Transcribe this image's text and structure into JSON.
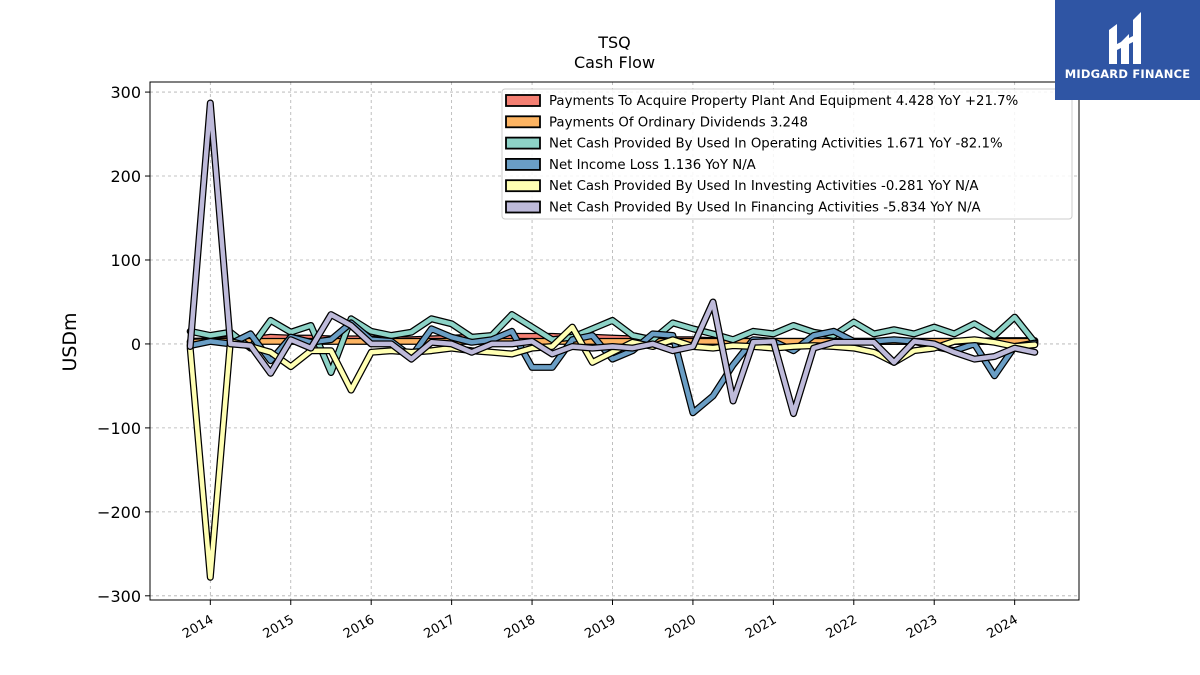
{
  "chart_data": {
    "type": "line",
    "title": "TSQ",
    "subtitle": "Cash Flow",
    "ylabel": "USDm",
    "ylim": [
      -305,
      312
    ],
    "xlim": [
      2013.25,
      2024.8
    ],
    "yticks": [
      300,
      200,
      100,
      0,
      -100,
      -200,
      -300
    ],
    "ytick_labels": [
      "300",
      "200",
      "100",
      "0",
      "−100",
      "−200",
      "−300"
    ],
    "xticks": [
      2014,
      2015,
      2016,
      2017,
      2018,
      2019,
      2020,
      2021,
      2022,
      2023,
      2024
    ],
    "xtick_labels": [
      "2014",
      "2015",
      "2016",
      "2017",
      "2018",
      "2019",
      "2020",
      "2021",
      "2022",
      "2023",
      "2024"
    ],
    "grid": true,
    "legend_position": "top-right",
    "series": [
      {
        "name": "Payments To Acquire Property Plant And Equipment  4.428 YoY +21.7%",
        "color": "#f47f72",
        "points": [
          [
            2013.75,
            3
          ],
          [
            2014.0,
            4
          ],
          [
            2014.25,
            5
          ],
          [
            2014.5,
            5
          ],
          [
            2014.75,
            8
          ],
          [
            2015.0,
            7
          ],
          [
            2015.25,
            7
          ],
          [
            2015.5,
            6
          ],
          [
            2015.75,
            6
          ],
          [
            2016.0,
            6
          ],
          [
            2016.25,
            5
          ],
          [
            2016.5,
            5
          ],
          [
            2016.75,
            6
          ],
          [
            2017.0,
            7
          ],
          [
            2017.25,
            8
          ],
          [
            2017.5,
            9
          ],
          [
            2017.75,
            9
          ],
          [
            2018.0,
            9
          ],
          [
            2018.25,
            9
          ],
          [
            2018.5,
            8
          ],
          [
            2018.75,
            8
          ],
          [
            2019.0,
            7
          ],
          [
            2019.25,
            6
          ],
          [
            2019.5,
            5
          ],
          [
            2019.75,
            5
          ],
          [
            2020.0,
            5
          ],
          [
            2020.25,
            4
          ],
          [
            2020.5,
            4
          ],
          [
            2020.75,
            3
          ],
          [
            2021.0,
            3
          ],
          [
            2021.25,
            3
          ],
          [
            2021.5,
            3
          ],
          [
            2021.75,
            3
          ],
          [
            2022.0,
            3
          ],
          [
            2022.25,
            3
          ],
          [
            2022.5,
            3
          ],
          [
            2022.75,
            3
          ],
          [
            2023.0,
            3
          ],
          [
            2023.25,
            3
          ],
          [
            2023.5,
            3
          ],
          [
            2023.75,
            4
          ],
          [
            2024.0,
            4
          ],
          [
            2024.25,
            4
          ]
        ]
      },
      {
        "name": "Payments Of Ordinary Dividends  3.248",
        "color": "#fdb462",
        "points": [
          [
            2013.75,
            2
          ],
          [
            2014.0,
            3
          ],
          [
            2014.25,
            3
          ],
          [
            2014.5,
            3
          ],
          [
            2014.75,
            3
          ],
          [
            2015.0,
            3
          ],
          [
            2015.25,
            3
          ],
          [
            2015.5,
            3
          ],
          [
            2015.75,
            3
          ],
          [
            2016.0,
            3
          ],
          [
            2016.25,
            3
          ],
          [
            2016.5,
            3
          ],
          [
            2016.75,
            3
          ],
          [
            2017.0,
            3
          ],
          [
            2017.25,
            3
          ],
          [
            2017.5,
            3
          ],
          [
            2017.75,
            3
          ],
          [
            2018.0,
            3
          ],
          [
            2018.25,
            3
          ],
          [
            2018.5,
            3
          ],
          [
            2018.75,
            3
          ],
          [
            2019.0,
            3
          ],
          [
            2019.25,
            3
          ],
          [
            2019.5,
            3
          ],
          [
            2019.75,
            3
          ],
          [
            2020.0,
            3
          ],
          [
            2020.25,
            3
          ],
          [
            2020.5,
            3
          ],
          [
            2020.75,
            3
          ],
          [
            2021.0,
            3
          ],
          [
            2021.25,
            3
          ],
          [
            2021.5,
            3
          ],
          [
            2021.75,
            3
          ],
          [
            2022.0,
            3
          ],
          [
            2022.25,
            3
          ],
          [
            2022.5,
            3
          ],
          [
            2022.75,
            3
          ],
          [
            2023.0,
            3
          ],
          [
            2023.25,
            3
          ],
          [
            2023.5,
            3
          ],
          [
            2023.75,
            3
          ],
          [
            2024.0,
            3
          ],
          [
            2024.25,
            3
          ]
        ]
      },
      {
        "name": "Net Cash Provided By Used In Operating Activities  1.671 YoY -82.1%",
        "color": "#8dd3c7",
        "points": [
          [
            2013.75,
            15
          ],
          [
            2014.0,
            10
          ],
          [
            2014.25,
            14
          ],
          [
            2014.5,
            -5
          ],
          [
            2014.75,
            28
          ],
          [
            2015.0,
            14
          ],
          [
            2015.25,
            22
          ],
          [
            2015.5,
            -34
          ],
          [
            2015.75,
            30
          ],
          [
            2016.0,
            15
          ],
          [
            2016.25,
            10
          ],
          [
            2016.5,
            14
          ],
          [
            2016.75,
            30
          ],
          [
            2017.0,
            24
          ],
          [
            2017.25,
            8
          ],
          [
            2017.5,
            10
          ],
          [
            2017.75,
            35
          ],
          [
            2018.0,
            20
          ],
          [
            2018.25,
            5
          ],
          [
            2018.5,
            8
          ],
          [
            2018.75,
            18
          ],
          [
            2019.0,
            28
          ],
          [
            2019.25,
            10
          ],
          [
            2019.5,
            5
          ],
          [
            2019.75,
            25
          ],
          [
            2020.0,
            18
          ],
          [
            2020.25,
            12
          ],
          [
            2020.5,
            5
          ],
          [
            2020.75,
            15
          ],
          [
            2021.0,
            12
          ],
          [
            2021.25,
            22
          ],
          [
            2021.5,
            14
          ],
          [
            2021.75,
            10
          ],
          [
            2022.0,
            26
          ],
          [
            2022.25,
            12
          ],
          [
            2022.5,
            17
          ],
          [
            2022.75,
            12
          ],
          [
            2023.0,
            20
          ],
          [
            2023.25,
            12
          ],
          [
            2023.5,
            24
          ],
          [
            2023.75,
            10
          ],
          [
            2024.0,
            32
          ],
          [
            2024.25,
            2
          ]
        ]
      },
      {
        "name": "Net Income Loss  1.136 YoY N/A",
        "color": "#6a9ec5",
        "points": [
          [
            2013.75,
            -2
          ],
          [
            2014.0,
            3
          ],
          [
            2014.25,
            0
          ],
          [
            2014.5,
            12
          ],
          [
            2014.75,
            -20
          ],
          [
            2015.0,
            8
          ],
          [
            2015.25,
            2
          ],
          [
            2015.5,
            5
          ],
          [
            2015.75,
            25
          ],
          [
            2016.0,
            5
          ],
          [
            2016.25,
            3
          ],
          [
            2016.5,
            -15
          ],
          [
            2016.75,
            18
          ],
          [
            2017.0,
            8
          ],
          [
            2017.25,
            2
          ],
          [
            2017.5,
            5
          ],
          [
            2017.75,
            15
          ],
          [
            2018.0,
            -28
          ],
          [
            2018.25,
            -28
          ],
          [
            2018.5,
            5
          ],
          [
            2018.75,
            10
          ],
          [
            2019.0,
            -18
          ],
          [
            2019.25,
            -8
          ],
          [
            2019.5,
            12
          ],
          [
            2019.75,
            10
          ],
          [
            2020.0,
            -82
          ],
          [
            2020.25,
            -62
          ],
          [
            2020.5,
            -25
          ],
          [
            2020.75,
            5
          ],
          [
            2021.0,
            3
          ],
          [
            2021.25,
            -8
          ],
          [
            2021.5,
            10
          ],
          [
            2021.75,
            15
          ],
          [
            2022.0,
            3
          ],
          [
            2022.25,
            3
          ],
          [
            2022.5,
            5
          ],
          [
            2022.75,
            3
          ],
          [
            2023.0,
            -3
          ],
          [
            2023.25,
            -8
          ],
          [
            2023.5,
            0
          ],
          [
            2023.75,
            -38
          ],
          [
            2024.0,
            -3
          ],
          [
            2024.25,
            1
          ]
        ]
      },
      {
        "name": "Net Cash Provided By Used In Investing Activities  -0.281 YoY N/A",
        "color": "#ffffb3",
        "points": [
          [
            2013.75,
            -5
          ],
          [
            2014.0,
            -278
          ],
          [
            2014.25,
            3
          ],
          [
            2014.5,
            -3
          ],
          [
            2014.75,
            -10
          ],
          [
            2015.0,
            -27
          ],
          [
            2015.25,
            -8
          ],
          [
            2015.5,
            -8
          ],
          [
            2015.75,
            -55
          ],
          [
            2016.0,
            -10
          ],
          [
            2016.25,
            -8
          ],
          [
            2016.5,
            -10
          ],
          [
            2016.75,
            -8
          ],
          [
            2017.0,
            -5
          ],
          [
            2017.25,
            -8
          ],
          [
            2017.5,
            -10
          ],
          [
            2017.75,
            -12
          ],
          [
            2018.0,
            -5
          ],
          [
            2018.25,
            -3
          ],
          [
            2018.5,
            20
          ],
          [
            2018.75,
            -22
          ],
          [
            2019.0,
            -10
          ],
          [
            2019.25,
            2
          ],
          [
            2019.5,
            -3
          ],
          [
            2019.75,
            5
          ],
          [
            2020.0,
            -3
          ],
          [
            2020.25,
            -5
          ],
          [
            2020.5,
            -2
          ],
          [
            2020.75,
            -3
          ],
          [
            2021.0,
            -5
          ],
          [
            2021.25,
            -3
          ],
          [
            2021.5,
            -2
          ],
          [
            2021.75,
            -3
          ],
          [
            2022.0,
            -5
          ],
          [
            2022.25,
            -10
          ],
          [
            2022.5,
            -22
          ],
          [
            2022.75,
            -8
          ],
          [
            2023.0,
            -5
          ],
          [
            2023.25,
            3
          ],
          [
            2023.5,
            5
          ],
          [
            2023.75,
            2
          ],
          [
            2024.0,
            -3
          ],
          [
            2024.25,
            -1
          ]
        ]
      },
      {
        "name": "Net Cash Provided By Used In Financing Activities  -5.834 YoY N/A",
        "color": "#bebada",
        "points": [
          [
            2013.75,
            -3
          ],
          [
            2014.0,
            287
          ],
          [
            2014.25,
            0
          ],
          [
            2014.5,
            -2
          ],
          [
            2014.75,
            -35
          ],
          [
            2015.0,
            5
          ],
          [
            2015.25,
            -5
          ],
          [
            2015.5,
            35
          ],
          [
            2015.75,
            22
          ],
          [
            2016.0,
            0
          ],
          [
            2016.25,
            0
          ],
          [
            2016.5,
            -18
          ],
          [
            2016.75,
            2
          ],
          [
            2017.0,
            0
          ],
          [
            2017.25,
            -10
          ],
          [
            2017.5,
            0
          ],
          [
            2017.75,
            0
          ],
          [
            2018.0,
            3
          ],
          [
            2018.25,
            -12
          ],
          [
            2018.5,
            -3
          ],
          [
            2018.75,
            -5
          ],
          [
            2019.0,
            -3
          ],
          [
            2019.25,
            -5
          ],
          [
            2019.5,
            0
          ],
          [
            2019.75,
            -8
          ],
          [
            2020.0,
            -3
          ],
          [
            2020.25,
            50
          ],
          [
            2020.5,
            -68
          ],
          [
            2020.75,
            2
          ],
          [
            2021.0,
            3
          ],
          [
            2021.25,
            -83
          ],
          [
            2021.5,
            -5
          ],
          [
            2021.75,
            2
          ],
          [
            2022.0,
            2
          ],
          [
            2022.25,
            2
          ],
          [
            2022.5,
            -22
          ],
          [
            2022.75,
            3
          ],
          [
            2023.0,
            0
          ],
          [
            2023.25,
            -10
          ],
          [
            2023.5,
            -18
          ],
          [
            2023.75,
            -15
          ],
          [
            2024.0,
            -5
          ],
          [
            2024.25,
            -10
          ]
        ]
      }
    ]
  },
  "branding": {
    "logo_text": "MIDGARD FINANCE",
    "logo_color": "#2f55a4"
  }
}
